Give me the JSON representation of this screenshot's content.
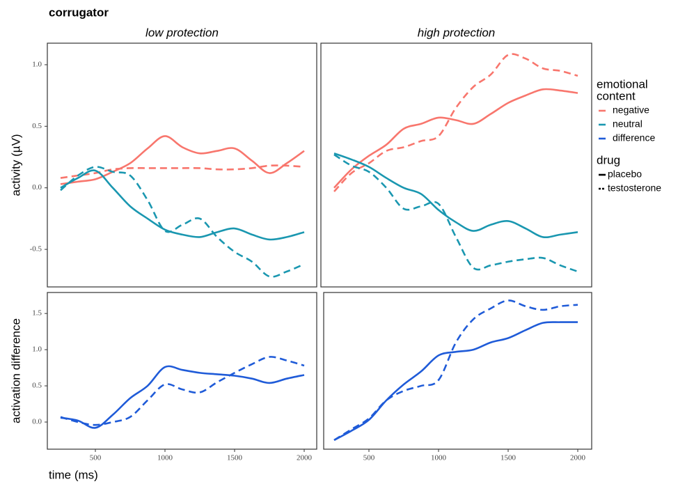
{
  "title": "corrugator",
  "x_label": "time (ms)",
  "legend": {
    "groups": [
      {
        "title_lines": [
          "emotional",
          "content"
        ],
        "items": [
          {
            "name": "negative",
            "color": "#F8766D"
          },
          {
            "name": "neutral",
            "color": "#1A97B0"
          },
          {
            "name": "difference",
            "color": "#1F5BD8"
          }
        ]
      },
      {
        "title_lines": [
          "drug"
        ],
        "items": [
          {
            "name": "placebo",
            "dashed": false
          },
          {
            "name": "testosterone",
            "dashed": true
          }
        ]
      }
    ]
  },
  "chart_data": [
    {
      "type": "line",
      "title": "low protection",
      "y_label": "activity (µV)",
      "x": [
        250,
        375,
        500,
        625,
        750,
        875,
        1000,
        1125,
        1250,
        1375,
        1500,
        1625,
        1750,
        1875,
        2000
      ],
      "xlim": [
        155,
        2090
      ],
      "ylim": [
        -0.805,
        1.175
      ],
      "yticks": [
        {
          "value": 1,
          "label": "1.0"
        },
        0.5,
        {
          "value": 0,
          "label": "0.0"
        },
        -0.5
      ],
      "series": [
        {
          "color": "#F8766D",
          "dashed": false,
          "values": [
            0.03,
            0.05,
            0.07,
            0.13,
            0.2,
            0.32,
            0.42,
            0.33,
            0.28,
            0.3,
            0.32,
            0.22,
            0.12,
            0.2,
            0.3
          ]
        },
        {
          "color": "#F8766D",
          "dashed": true,
          "values": [
            0.08,
            0.1,
            0.12,
            0.15,
            0.16,
            0.16,
            0.16,
            0.16,
            0.16,
            0.15,
            0.15,
            0.16,
            0.18,
            0.18,
            0.17
          ]
        },
        {
          "color": "#1A97B0",
          "dashed": false,
          "values": [
            0.0,
            0.08,
            0.14,
            0.0,
            -0.15,
            -0.25,
            -0.34,
            -0.38,
            -0.4,
            -0.36,
            -0.33,
            -0.38,
            -0.42,
            -0.4,
            -0.36
          ]
        },
        {
          "color": "#1A97B0",
          "dashed": true,
          "values": [
            -0.02,
            0.1,
            0.17,
            0.13,
            0.1,
            -0.1,
            -0.35,
            -0.3,
            -0.25,
            -0.4,
            -0.52,
            -0.6,
            -0.72,
            -0.68,
            -0.62
          ]
        }
      ]
    },
    {
      "type": "line",
      "title": "high protection",
      "x": [
        250,
        375,
        500,
        625,
        750,
        875,
        1000,
        1125,
        1250,
        1375,
        1500,
        1625,
        1750,
        1875,
        2000
      ],
      "xlim": [
        155,
        2100
      ],
      "ylim": [
        -0.805,
        1.175
      ],
      "series": [
        {
          "color": "#F8766D",
          "dashed": false,
          "values": [
            0.0,
            0.15,
            0.26,
            0.35,
            0.48,
            0.52,
            0.57,
            0.55,
            0.52,
            0.6,
            0.69,
            0.75,
            0.8,
            0.79,
            0.77
          ]
        },
        {
          "color": "#F8766D",
          "dashed": true,
          "values": [
            -0.03,
            0.12,
            0.2,
            0.3,
            0.33,
            0.38,
            0.42,
            0.65,
            0.82,
            0.92,
            1.08,
            1.05,
            0.97,
            0.95,
            0.91
          ]
        },
        {
          "color": "#1A97B0",
          "dashed": false,
          "values": [
            0.28,
            0.23,
            0.17,
            0.08,
            0.0,
            -0.05,
            -0.18,
            -0.28,
            -0.35,
            -0.3,
            -0.27,
            -0.33,
            -0.4,
            -0.38,
            -0.36
          ]
        },
        {
          "color": "#1A97B0",
          "dashed": true,
          "values": [
            0.27,
            0.18,
            0.13,
            0.0,
            -0.17,
            -0.15,
            -0.13,
            -0.4,
            -0.65,
            -0.63,
            -0.6,
            -0.58,
            -0.57,
            -0.63,
            -0.68
          ]
        }
      ]
    },
    {
      "type": "line",
      "y_label": "activation difference",
      "x": [
        250,
        375,
        500,
        625,
        750,
        875,
        1000,
        1125,
        1250,
        1375,
        1500,
        1625,
        1750,
        1875,
        2000
      ],
      "xlim": [
        155,
        2090
      ],
      "ylim": [
        -0.375,
        1.79
      ],
      "xticks": [
        500,
        1000,
        1500,
        2000
      ],
      "yticks": [
        {
          "value": 1.5,
          "label": "1.5"
        },
        {
          "value": 1,
          "label": "1.0"
        },
        0.5,
        {
          "value": 0,
          "label": "0.0"
        }
      ],
      "series": [
        {
          "color": "#1F5BD8",
          "dashed": false,
          "values": [
            0.06,
            0.02,
            -0.08,
            0.1,
            0.33,
            0.5,
            0.76,
            0.72,
            0.68,
            0.66,
            0.64,
            0.6,
            0.54,
            0.6,
            0.65
          ]
        },
        {
          "color": "#1F5BD8",
          "dashed": true,
          "values": [
            0.07,
            0.0,
            -0.04,
            0.0,
            0.07,
            0.3,
            0.52,
            0.45,
            0.41,
            0.55,
            0.68,
            0.8,
            0.9,
            0.85,
            0.78
          ]
        }
      ]
    },
    {
      "type": "line",
      "x": [
        250,
        375,
        500,
        625,
        750,
        875,
        1000,
        1125,
        1250,
        1375,
        1500,
        1625,
        1750,
        1875,
        2000
      ],
      "xlim": [
        175,
        2100
      ],
      "ylim": [
        -0.375,
        1.79
      ],
      "xticks": [
        500,
        1000,
        1500,
        2000
      ],
      "series": [
        {
          "color": "#1F5BD8",
          "dashed": false,
          "values": [
            -0.25,
            -0.12,
            0.03,
            0.3,
            0.52,
            0.7,
            0.92,
            0.97,
            1.0,
            1.1,
            1.16,
            1.27,
            1.37,
            1.38,
            1.38
          ]
        },
        {
          "color": "#1F5BD8",
          "dashed": true,
          "values": [
            -0.25,
            -0.1,
            0.05,
            0.3,
            0.43,
            0.5,
            0.58,
            1.1,
            1.42,
            1.57,
            1.68,
            1.6,
            1.55,
            1.6,
            1.62
          ]
        }
      ]
    }
  ]
}
